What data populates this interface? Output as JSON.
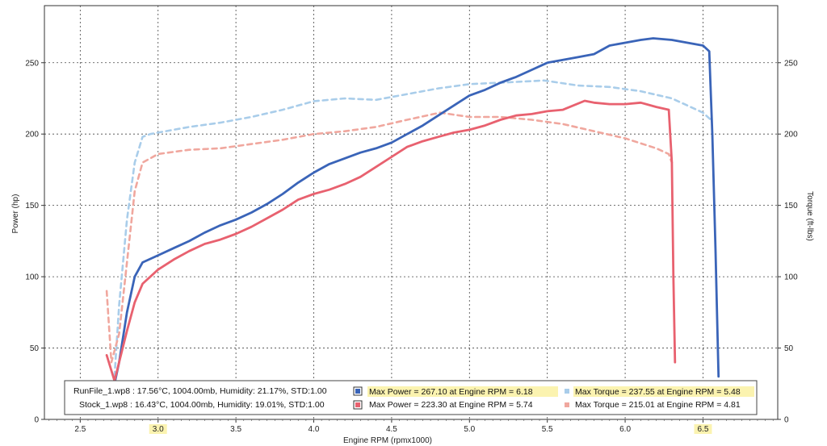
{
  "chart_data": {
    "type": "line",
    "xlabel": "Engine RPM (rpmx1000)",
    "ylabel": "Power (hp)",
    "ylabel_right": "Torque (ft-lbs)",
    "xlim": [
      2.27,
      6.98
    ],
    "ylim": [
      0,
      290
    ],
    "ylim_right": [
      0,
      290
    ],
    "x_ticks": [
      "2.5",
      "3.0",
      "3.5",
      "4.0",
      "4.5",
      "5.0",
      "5.5",
      "6.0",
      "6.5"
    ],
    "y_ticks": [
      "0",
      "50",
      "100",
      "150",
      "200",
      "250"
    ],
    "y_ticks_right": [
      "0",
      "50",
      "100",
      "150",
      "200",
      "250"
    ],
    "grid": true,
    "highlighted_x_ticks": [
      "3.0",
      "6.5"
    ],
    "series": [
      {
        "name": "Max Power = 267.10 at Engine RPM = 6.18",
        "axis": "left",
        "style": "solid",
        "color": "#3a64b8",
        "x": [
          2.72,
          2.75,
          2.8,
          2.85,
          2.9,
          3.0,
          3.1,
          3.2,
          3.3,
          3.4,
          3.5,
          3.6,
          3.7,
          3.8,
          3.9,
          4.0,
          4.1,
          4.2,
          4.3,
          4.4,
          4.5,
          4.6,
          4.7,
          4.8,
          4.9,
          5.0,
          5.1,
          5.2,
          5.3,
          5.4,
          5.5,
          5.6,
          5.7,
          5.8,
          5.9,
          6.0,
          6.1,
          6.18,
          6.3,
          6.4,
          6.5,
          6.54,
          6.56,
          6.58,
          6.6
        ],
        "y": [
          25,
          40,
          75,
          100,
          110,
          115,
          120,
          125,
          131,
          136,
          140,
          145,
          151,
          158,
          166,
          173,
          179,
          183,
          187,
          190,
          194,
          200,
          206,
          213,
          220,
          227,
          231,
          236,
          240,
          245,
          250,
          252,
          254,
          256,
          262,
          264,
          266,
          267.1,
          266,
          264,
          262,
          258,
          200,
          120,
          30
        ]
      },
      {
        "name": "Max Power = 223.30 at Engine RPM = 5.74",
        "axis": "left",
        "style": "solid",
        "color": "#e8616f",
        "x": [
          2.67,
          2.72,
          2.75,
          2.8,
          2.85,
          2.9,
          3.0,
          3.1,
          3.2,
          3.3,
          3.4,
          3.5,
          3.6,
          3.7,
          3.8,
          3.9,
          4.0,
          4.1,
          4.2,
          4.3,
          4.4,
          4.5,
          4.6,
          4.7,
          4.8,
          4.9,
          5.0,
          5.1,
          5.2,
          5.3,
          5.4,
          5.5,
          5.6,
          5.74,
          5.8,
          5.9,
          6.0,
          6.1,
          6.2,
          6.28,
          6.3,
          6.31,
          6.32
        ],
        "y": [
          45,
          27,
          40,
          62,
          82,
          95,
          105,
          112,
          118,
          123,
          126,
          130,
          135,
          141,
          147,
          154,
          158,
          161,
          165,
          170,
          177,
          184,
          191,
          195,
          198,
          201,
          203,
          206,
          210,
          213,
          214,
          216,
          217,
          223.3,
          222,
          221,
          221,
          222,
          219,
          217,
          180,
          100,
          40
        ]
      },
      {
        "name": "Max Torque = 237.55 at Engine RPM = 5.48",
        "axis": "right",
        "style": "dashed",
        "color": "#a9cdea",
        "x": [
          2.72,
          2.75,
          2.8,
          2.85,
          2.9,
          2.95,
          3.0,
          3.2,
          3.4,
          3.6,
          3.8,
          4.0,
          4.2,
          4.4,
          4.6,
          4.8,
          5.0,
          5.2,
          5.48,
          5.7,
          5.9,
          6.1,
          6.3,
          6.5,
          6.55
        ],
        "y": [
          30,
          80,
          140,
          180,
          198,
          200,
          201,
          205,
          208,
          212,
          217,
          223,
          225,
          224,
          228,
          232,
          235,
          236,
          237.55,
          234,
          233,
          230,
          225,
          215,
          210
        ]
      },
      {
        "name": "Max Torque = 215.01 at Engine RPM = 4.81",
        "axis": "right",
        "style": "dashed",
        "color": "#f0a79e",
        "x": [
          2.67,
          2.7,
          2.75,
          2.8,
          2.85,
          2.9,
          3.0,
          3.2,
          3.4,
          3.6,
          3.8,
          4.0,
          4.2,
          4.4,
          4.6,
          4.81,
          5.0,
          5.2,
          5.4,
          5.6,
          5.8,
          6.0,
          6.2,
          6.28,
          6.3
        ],
        "y": [
          90,
          40,
          60,
          110,
          160,
          180,
          186,
          189,
          190,
          193,
          196,
          200,
          202,
          205,
          210,
          215.01,
          212,
          212,
          210,
          207,
          202,
          197,
          190,
          186,
          180
        ]
      }
    ]
  },
  "legend": {
    "rows": [
      {
        "file": "RunFile_1.wp8 : 17.56°C, 1004.00mb, Humidity: 21.17%, STD:1.00",
        "power": "Max Power = 267.10 at Engine RPM = 6.18",
        "torque": "Max Torque = 237.55 at Engine RPM = 5.48",
        "power_color": "#3a64b8",
        "torque_color": "#a9cdea"
      },
      {
        "file": "Stock_1.wp8 : 16.43°C, 1004.00mb, Humidity: 19.01%, STD:1.00",
        "power": "Max Power = 223.30 at Engine RPM = 5.74",
        "torque": "Max Torque = 215.01 at Engine RPM = 4.81",
        "power_color": "#e8616f",
        "torque_color": "#f0a79e"
      }
    ]
  },
  "colors": {
    "grid": "#444444",
    "highlight": "#fbf3b0",
    "frame": "#333333"
  }
}
